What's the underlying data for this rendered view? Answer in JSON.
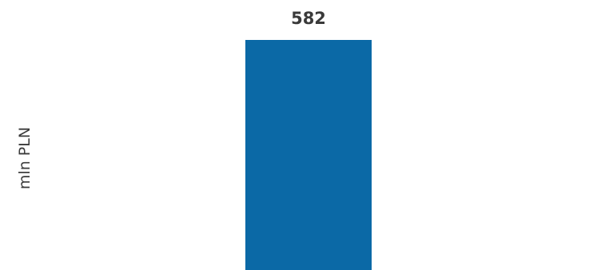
{
  "chart_data": {
    "type": "bar",
    "categories": [
      ""
    ],
    "values": [
      582
    ],
    "data_labels": [
      "582"
    ],
    "title": "",
    "xlabel": "",
    "ylabel": "mln PLN",
    "ylim": [
      0,
      582
    ],
    "grid": false,
    "legend": "none",
    "bar_color": "#0b69a6",
    "label_color": "#3a3a3a"
  }
}
